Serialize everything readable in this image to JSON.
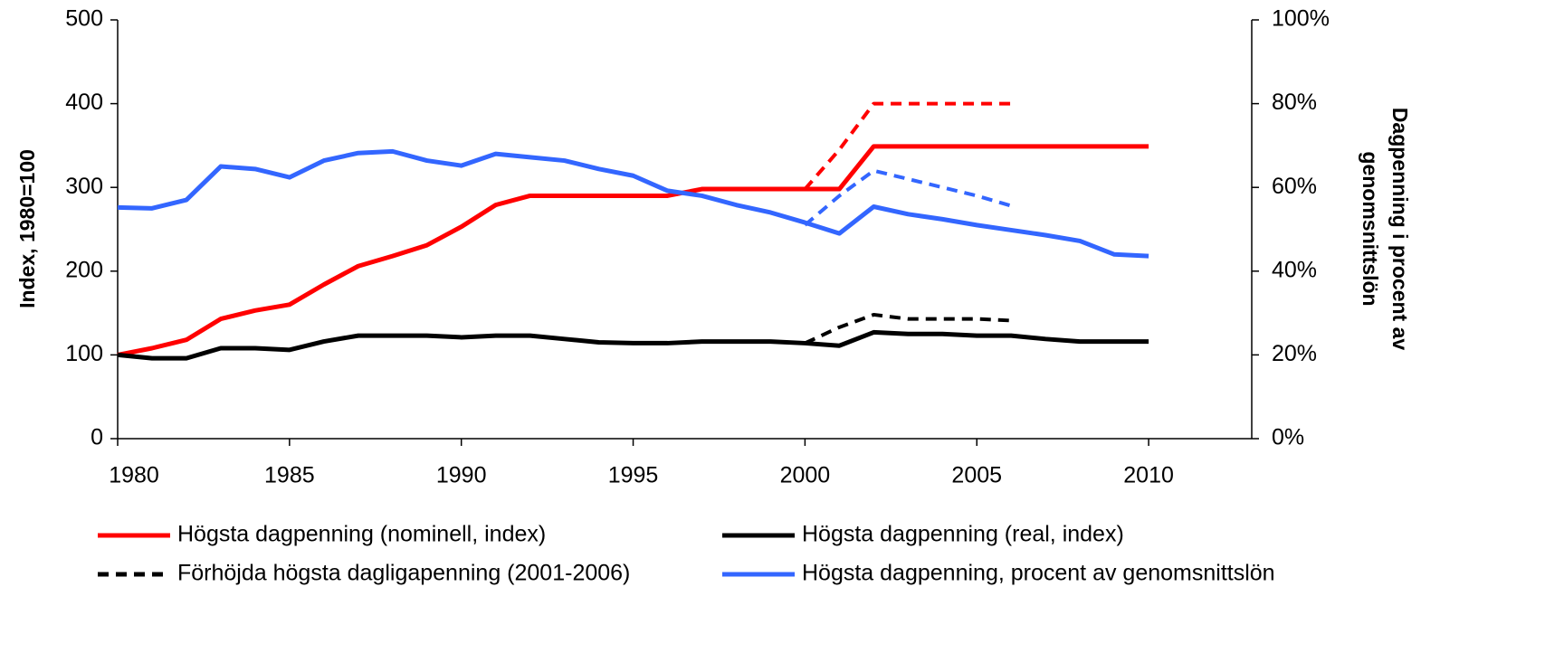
{
  "chart_data": {
    "type": "line",
    "ylabel": "Index, 1980=100",
    "y2label": [
      "Dagpenning i procent av",
      "genomsnittslön"
    ],
    "xlim": [
      1980,
      2013
    ],
    "xticks": [
      1980,
      1985,
      1990,
      1995,
      2000,
      2005,
      2010
    ],
    "ylim": [
      0,
      500
    ],
    "yticks": [
      0,
      100,
      200,
      300,
      400,
      500
    ],
    "y2lim": [
      0,
      100
    ],
    "y2ticks": [
      {
        "value": 0,
        "label": "0%"
      },
      {
        "value": 20,
        "label": "20%"
      },
      {
        "value": 40,
        "label": "40%"
      },
      {
        "value": 60,
        "label": "60%"
      },
      {
        "value": 80,
        "label": "80%"
      },
      {
        "value": 100,
        "label": "100%"
      }
    ],
    "grid": false,
    "series": [
      {
        "name": "Högsta dagpenning (nominell, index)",
        "color": "#ff0000",
        "dashed": false,
        "x": [
          1980,
          1981,
          1982,
          1983,
          1984,
          1985,
          1986,
          1987,
          1988,
          1989,
          1990,
          1991,
          1992,
          1993,
          1994,
          1995,
          1996,
          1997,
          1998,
          1999,
          2000,
          2001,
          2002,
          2003,
          2004,
          2005,
          2006,
          2007,
          2008,
          2009,
          2010
        ],
        "values": [
          100,
          108,
          118,
          143,
          153,
          160,
          184,
          206,
          218,
          231,
          253,
          279,
          290,
          290,
          290,
          290,
          290,
          298,
          298,
          298,
          298,
          298,
          349,
          349,
          349,
          349,
          349,
          349,
          349,
          349,
          349
        ]
      },
      {
        "name": "Högsta dagpenning (real, index)",
        "color": "#000000",
        "dashed": false,
        "x": [
          1980,
          1981,
          1982,
          1983,
          1984,
          1985,
          1986,
          1987,
          1988,
          1989,
          1990,
          1991,
          1992,
          1993,
          1994,
          1995,
          1996,
          1997,
          1998,
          1999,
          2000,
          2001,
          2002,
          2003,
          2004,
          2005,
          2006,
          2007,
          2008,
          2009,
          2010
        ],
        "values": [
          100,
          96,
          96,
          108,
          108,
          106,
          116,
          123,
          123,
          123,
          121,
          123,
          123,
          119,
          115,
          114,
          114,
          116,
          116,
          116,
          114,
          111,
          127,
          125,
          125,
          123,
          123,
          119,
          116,
          116,
          116
        ]
      },
      {
        "name": "Förhöjda högsta dagligapenning (2001-2006)",
        "color": "#000000",
        "dashed": true,
        "x": [
          2000,
          2001,
          2002,
          2003,
          2004,
          2005,
          2006
        ],
        "values": [
          114,
          133,
          148,
          143,
          143,
          143,
          141
        ]
      },
      {
        "name": "Högsta dagpenning, procent av genomsnittslön",
        "color": "#3366ff",
        "dashed": false,
        "axis": "y2",
        "x": [
          1980,
          1981,
          1982,
          1983,
          1984,
          1985,
          1986,
          1987,
          1988,
          1989,
          1990,
          1991,
          1992,
          1993,
          1994,
          1995,
          1996,
          1997,
          1998,
          1999,
          2000,
          2001,
          2002,
          2003,
          2004,
          2005,
          2006,
          2007,
          2008,
          2009,
          2010
        ],
        "values": [
          55.2,
          55,
          57,
          65,
          64.4,
          62.4,
          66.4,
          68.2,
          68.6,
          66.4,
          65.2,
          68,
          67.2,
          66.4,
          64.4,
          62.8,
          59.2,
          58,
          55.8,
          54,
          51.6,
          49,
          55.4,
          53.6,
          52.4,
          51,
          49.8,
          48.6,
          47.2,
          44,
          43.6
        ]
      },
      {
        "color": "#ff0000",
        "dashed": true,
        "x": [
          2000,
          2001,
          2002,
          2003,
          2004,
          2005,
          2006
        ],
        "values": [
          298,
          345,
          400,
          400,
          400,
          400,
          400
        ]
      },
      {
        "color": "#3366ff",
        "dashed": true,
        "axis": "y2",
        "x": [
          2000,
          2001,
          2002,
          2003,
          2004,
          2005,
          2006
        ],
        "values": [
          51,
          58,
          64,
          62,
          60,
          58,
          55.6
        ]
      }
    ]
  }
}
